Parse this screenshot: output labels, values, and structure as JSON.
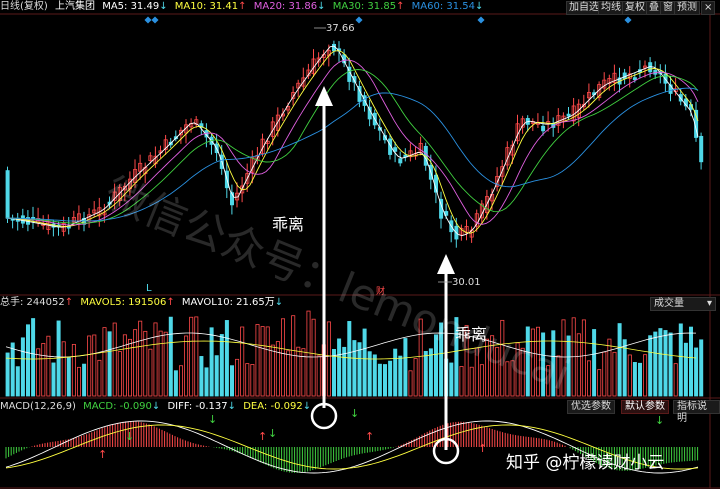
{
  "main_header": {
    "period": "日线(复权)",
    "stock_name": "上汽集团",
    "ma5_label": "MA5: 31.49",
    "ma10_label": "MA10: 31.41",
    "ma20_label": "MA20: 31.86",
    "ma30_label": "MA30: 31.85",
    "ma60_label": "MA60: 31.54"
  },
  "toolbar": {
    "add_watch": "加自选",
    "avg_line": "均线",
    "restore": "复权",
    "overlay_icon": "叠",
    "window_icon": "窗",
    "predict": "预测"
  },
  "price_markers": {
    "high": "37.66",
    "low": "30.01"
  },
  "annotations": {
    "divergence_top": "乖离",
    "divergence_bottom": "乖离"
  },
  "axis_markers": {
    "L_marker": "L",
    "cai_marker": "财"
  },
  "volume_header": {
    "total": "总手: 244052",
    "mavol5": "MAVOL5: 191506",
    "mavol10": "MAVOL10: 21.65万"
  },
  "volume_dropdown": "成交量",
  "macd_header": {
    "name": "MACD(12,26,9)",
    "macd": "MACD: -0.090",
    "diff": "DIFF: -0.137",
    "dea": "DEA: -0.092"
  },
  "macd_tabs": {
    "optimized": "优选参数",
    "default": "默认参数",
    "guide": "指标说明"
  },
  "watermark": "微信公众号：lemonducai",
  "credit": "知乎 @柠檬读财小云",
  "colors": {
    "up": "#ff4a4a",
    "down": "#4fd8e8",
    "ma5": "#ffffff",
    "ma10": "#ffff40",
    "ma20": "#e060e0",
    "ma30": "#40d040",
    "ma60": "#2a90e0"
  }
}
